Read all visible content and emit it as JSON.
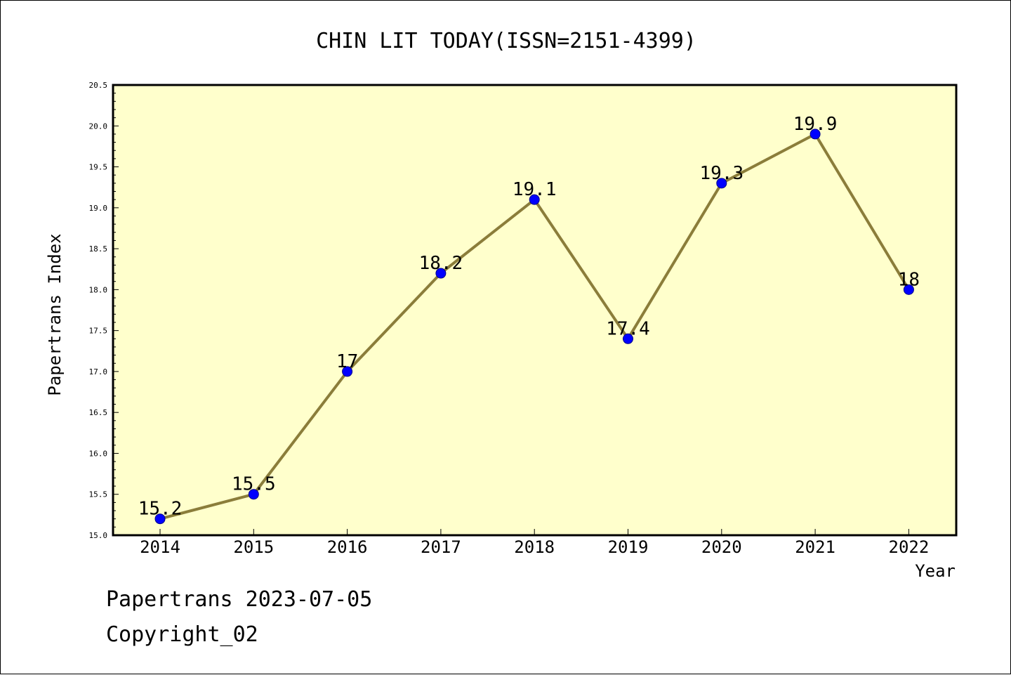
{
  "chart_data": {
    "type": "line",
    "title": "CHIN LIT TODAY(ISSN=2151-4399)",
    "xlabel": "Year",
    "ylabel": "Papertrans Index",
    "categories": [
      "2014",
      "2015",
      "2016",
      "2017",
      "2018",
      "2019",
      "2020",
      "2021",
      "2022"
    ],
    "series": [
      {
        "values": [
          15.2,
          15.5,
          17,
          18.2,
          19.1,
          17.4,
          19.3,
          19.9,
          18
        ],
        "data_labels": [
          "15.2",
          "15.5",
          "17",
          "18.2",
          "19.1",
          "17.4",
          "19.3",
          "19.9",
          "18"
        ]
      }
    ],
    "ylim": [
      15.0,
      20.5
    ],
    "yticks": [
      "15.0",
      "15.5",
      "16.0",
      "16.5",
      "17.0",
      "17.5",
      "18.0",
      "18.5",
      "19.0",
      "19.5",
      "20.0",
      "20.5"
    ],
    "grid": false,
    "colors": {
      "plot_background": "#ffffcc",
      "line": "#8b7d3a",
      "marker": "#0000ff"
    }
  },
  "footer": {
    "line1": "Papertrans 2023-07-05",
    "line2": "Copyright_02"
  }
}
